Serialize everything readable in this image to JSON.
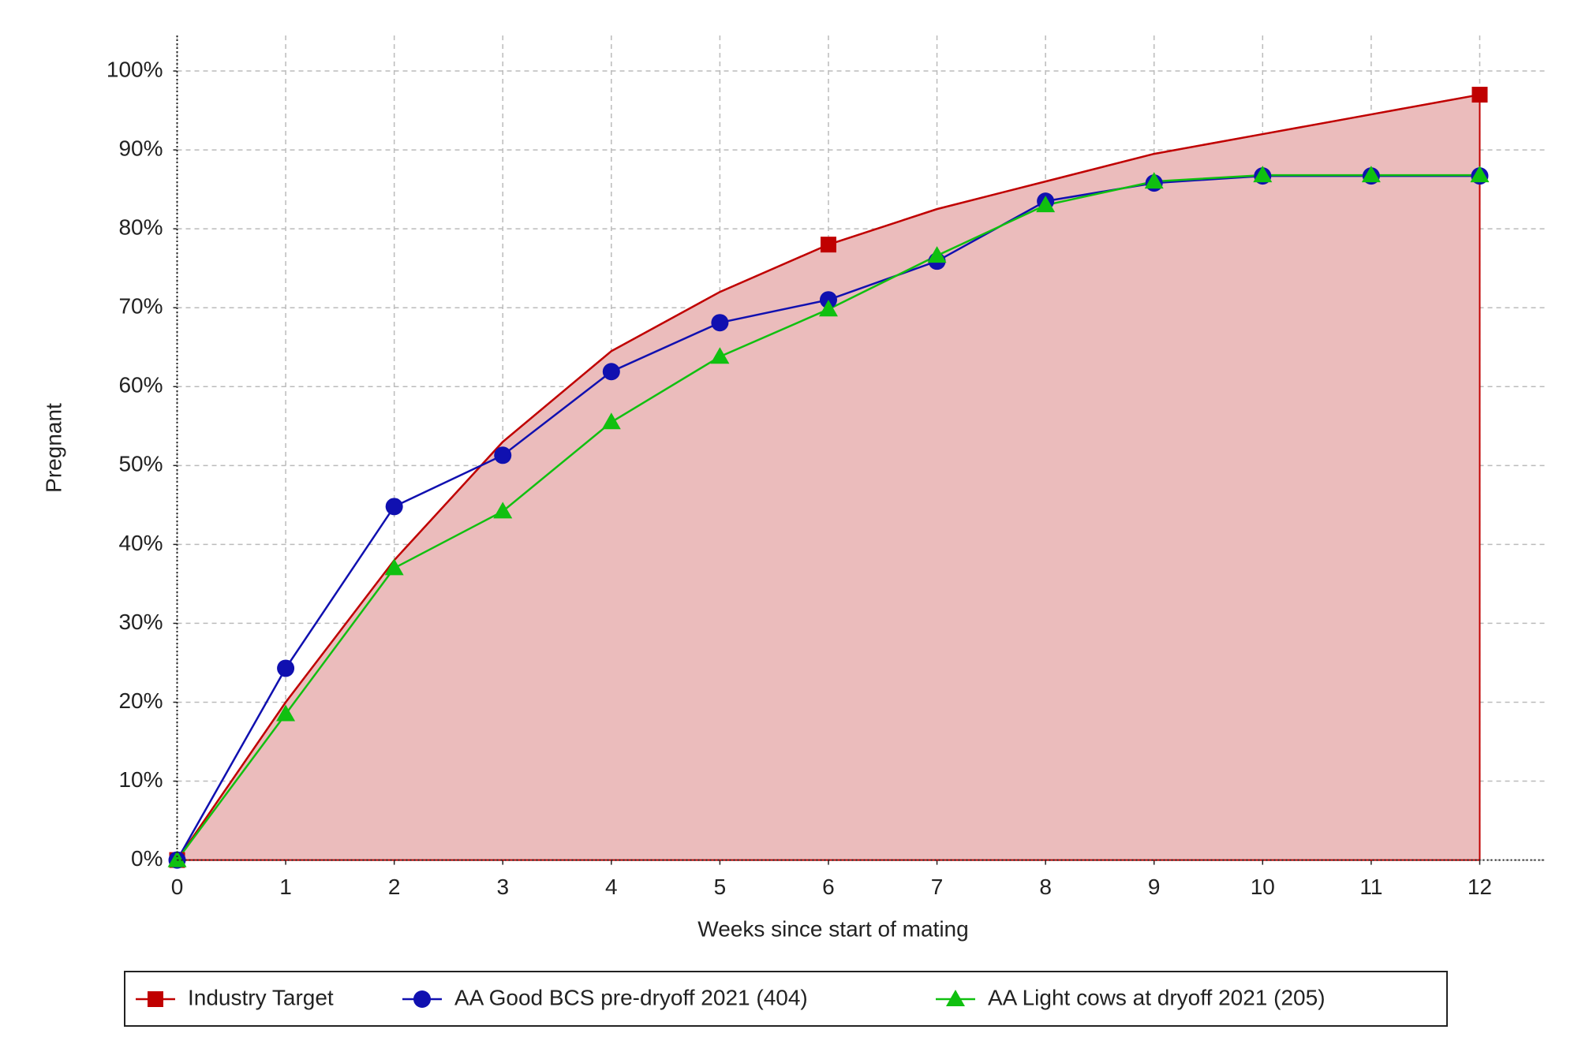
{
  "chart_data": {
    "type": "line",
    "x_label": "Weeks since start of mating",
    "y_label": "Pregnant",
    "x": [
      0,
      1,
      2,
      3,
      4,
      5,
      6,
      7,
      8,
      9,
      10,
      11,
      12
    ],
    "series": [
      {
        "name": "Industry Target",
        "color": "#c00000",
        "marker": "square",
        "marker_interval": 6,
        "fill": "#ebbcbc",
        "values": [
          0,
          20,
          38,
          53,
          64.5,
          72,
          78,
          82.5,
          86,
          89.5,
          92,
          94.5,
          97
        ]
      },
      {
        "name": "AA Good BCS pre-dryoff 2021 (404)",
        "color": "#1010b0",
        "marker": "circle",
        "values": [
          0,
          24.3,
          44.8,
          51.3,
          61.9,
          68.1,
          71,
          75.9,
          83.5,
          85.8,
          86.7,
          86.7,
          86.7
        ]
      },
      {
        "name": "AA Light cows at dryoff 2021 (205)",
        "color": "#10c010",
        "marker": "triangle",
        "values": [
          0,
          18.5,
          37,
          44.2,
          55.5,
          63.8,
          69.8,
          76.6,
          83,
          86,
          86.8,
          86.8,
          86.8
        ]
      }
    ],
    "xlim": [
      0,
      12.6
    ],
    "xticks": [
      0,
      1,
      2,
      3,
      4,
      5,
      6,
      7,
      8,
      9,
      10,
      11,
      12
    ],
    "ylim": [
      0,
      104.5
    ],
    "yticks": [
      {
        "value": 0,
        "label": "0%"
      },
      {
        "value": 10,
        "label": "10%"
      },
      {
        "value": 20,
        "label": "20%"
      },
      {
        "value": 30,
        "label": "30%"
      },
      {
        "value": 40,
        "label": "40%"
      },
      {
        "value": 50,
        "label": "50%"
      },
      {
        "value": 60,
        "label": "60%"
      },
      {
        "value": 70,
        "label": "70%"
      },
      {
        "value": 80,
        "label": "80%"
      },
      {
        "value": 90,
        "label": "90%"
      },
      {
        "value": 100,
        "label": "100%"
      }
    ],
    "grid": true,
    "legend": "bottom"
  }
}
